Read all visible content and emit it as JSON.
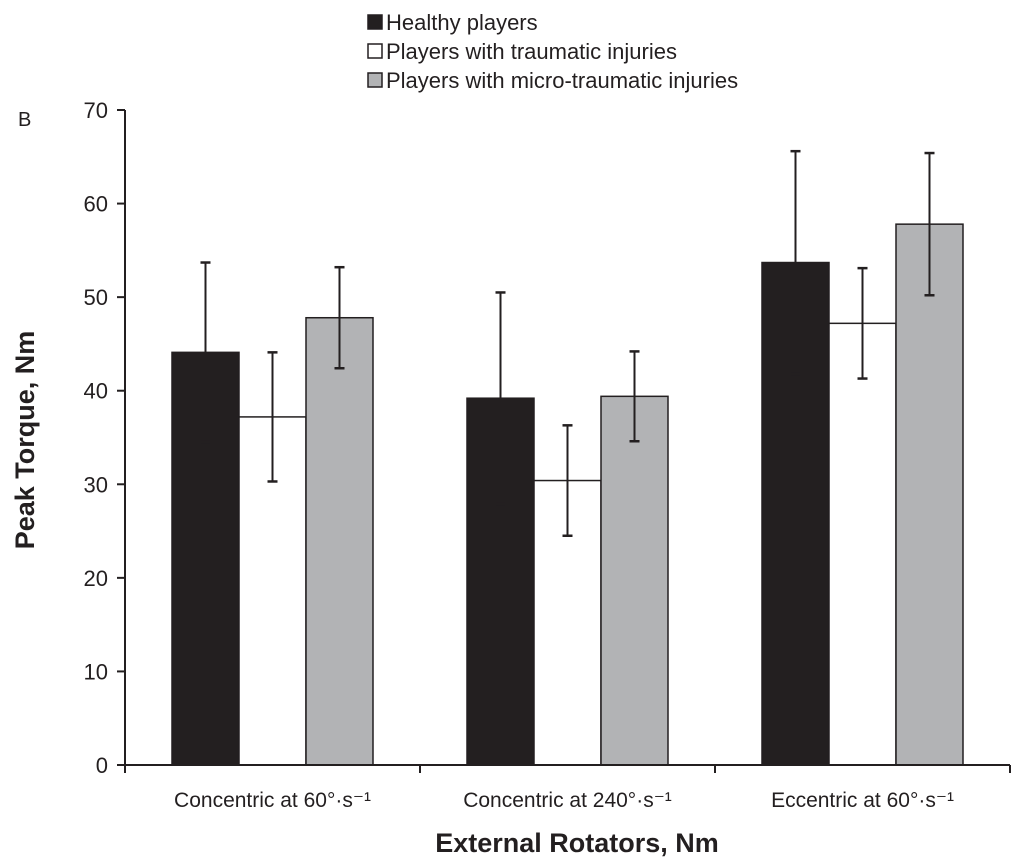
{
  "panel_label": "B",
  "chart_data": {
    "type": "bar",
    "xlabel": "External Rotators, Nm",
    "ylabel": "Peak Torque, Nm",
    "ylim": [
      0,
      70
    ],
    "yticks": [
      0,
      10,
      20,
      30,
      40,
      50,
      60,
      70
    ],
    "grid": false,
    "legend_position": "top-center",
    "categories": [
      "Concentric at 60°·s⁻¹",
      "Concentric at 240°·s⁻¹",
      "Eccentric at 60°·s⁻¹"
    ],
    "series": [
      {
        "name": "Healthy players",
        "values": [
          44.1,
          39.2,
          53.7
        ],
        "errors": [
          9.6,
          11.3,
          11.9
        ],
        "color": "#231f20"
      },
      {
        "name": "Players with traumatic injuries",
        "values": [
          37.2,
          30.4,
          47.2
        ],
        "errors": [
          6.9,
          5.9,
          5.9
        ],
        "color": "#ffffff"
      },
      {
        "name": "Players with micro-traumatic injuries",
        "values": [
          47.8,
          39.4,
          57.8
        ],
        "errors": [
          5.4,
          4.8,
          7.6
        ],
        "color": "#b2b3b5"
      }
    ]
  }
}
